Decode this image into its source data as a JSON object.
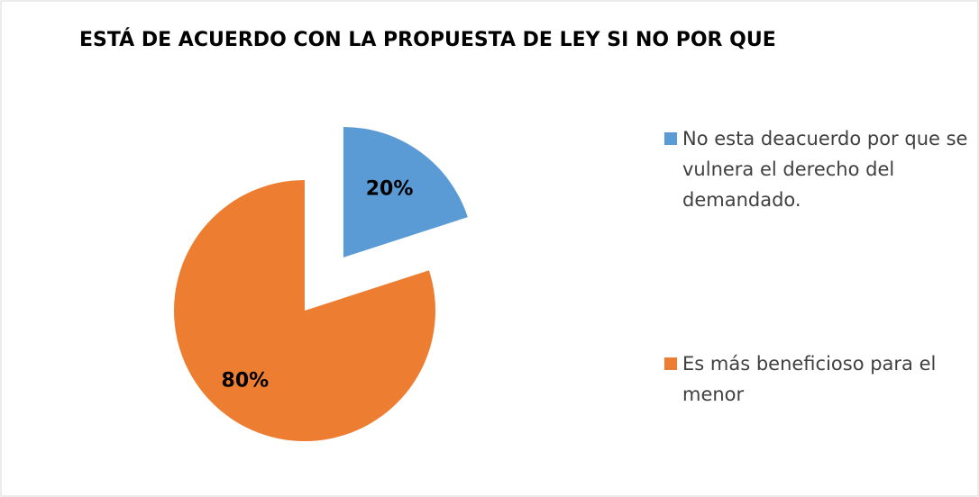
{
  "chart_data": {
    "type": "pie",
    "title": "ESTÁ DE ACUERDO CON LA PROPUESTA DE LEY  SI NO POR QUE",
    "categories": [
      "No esta deacuerdo por que se vulnera el derecho del demandado.",
      "Es más beneficioso para el menor"
    ],
    "values": [
      20,
      80
    ],
    "value_labels": [
      "20%",
      "80%"
    ],
    "colors": [
      "#5b9bd5",
      "#ed7d31"
    ],
    "legend": "right"
  }
}
